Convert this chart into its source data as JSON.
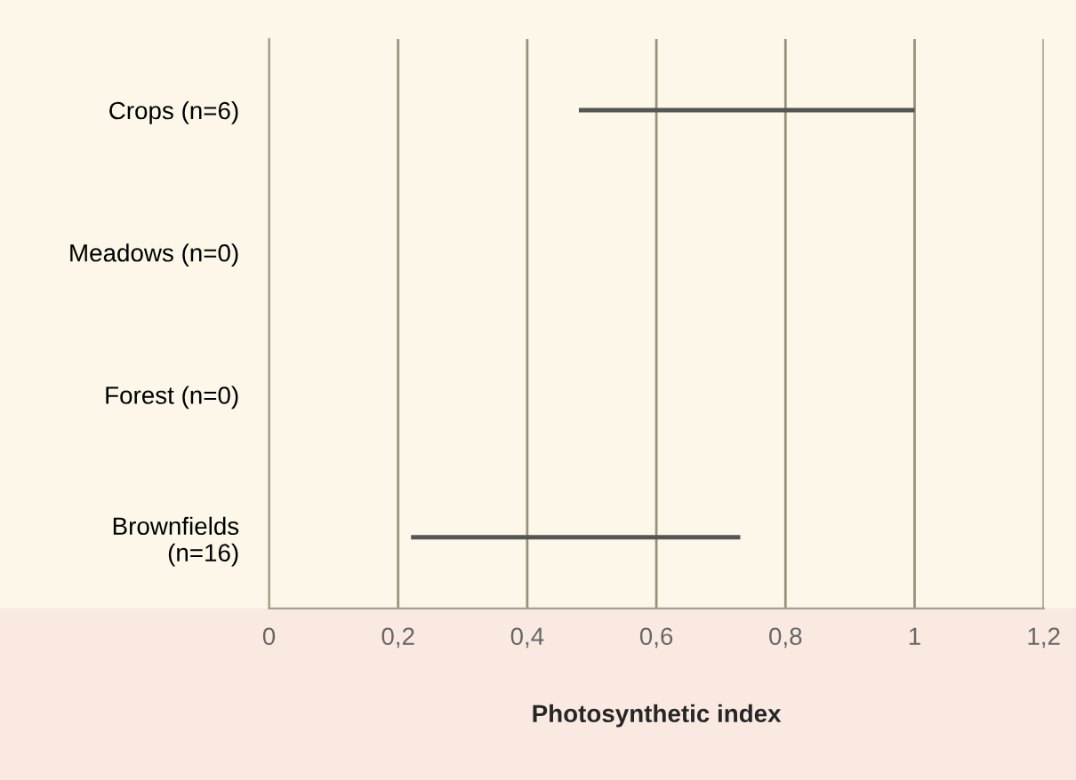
{
  "chart_data": {
    "type": "bar",
    "orientation": "horizontal",
    "xlabel": "Photosynthetic index",
    "categories": [
      "Crops (n=6)",
      "Meadows (n=0)",
      "Forest (n=0)",
      "Brownfields\n(n=16)"
    ],
    "base": [
      0.48,
      null,
      null,
      0.22
    ],
    "values": [
      0.52,
      null,
      null,
      0.51
    ],
    "color": "#555555",
    "xlim": [
      0,
      1.2
    ],
    "xticks": [
      0,
      {
        "value": 0.2,
        "label": "0,2"
      },
      {
        "value": 0.4,
        "label": "0,4"
      },
      {
        "value": 0.6,
        "label": "0,6"
      },
      {
        "value": 0.8,
        "label": "0,8"
      },
      1,
      {
        "value": 1.2,
        "label": "1,2"
      }
    ],
    "grid": "x",
    "legend": false
  }
}
